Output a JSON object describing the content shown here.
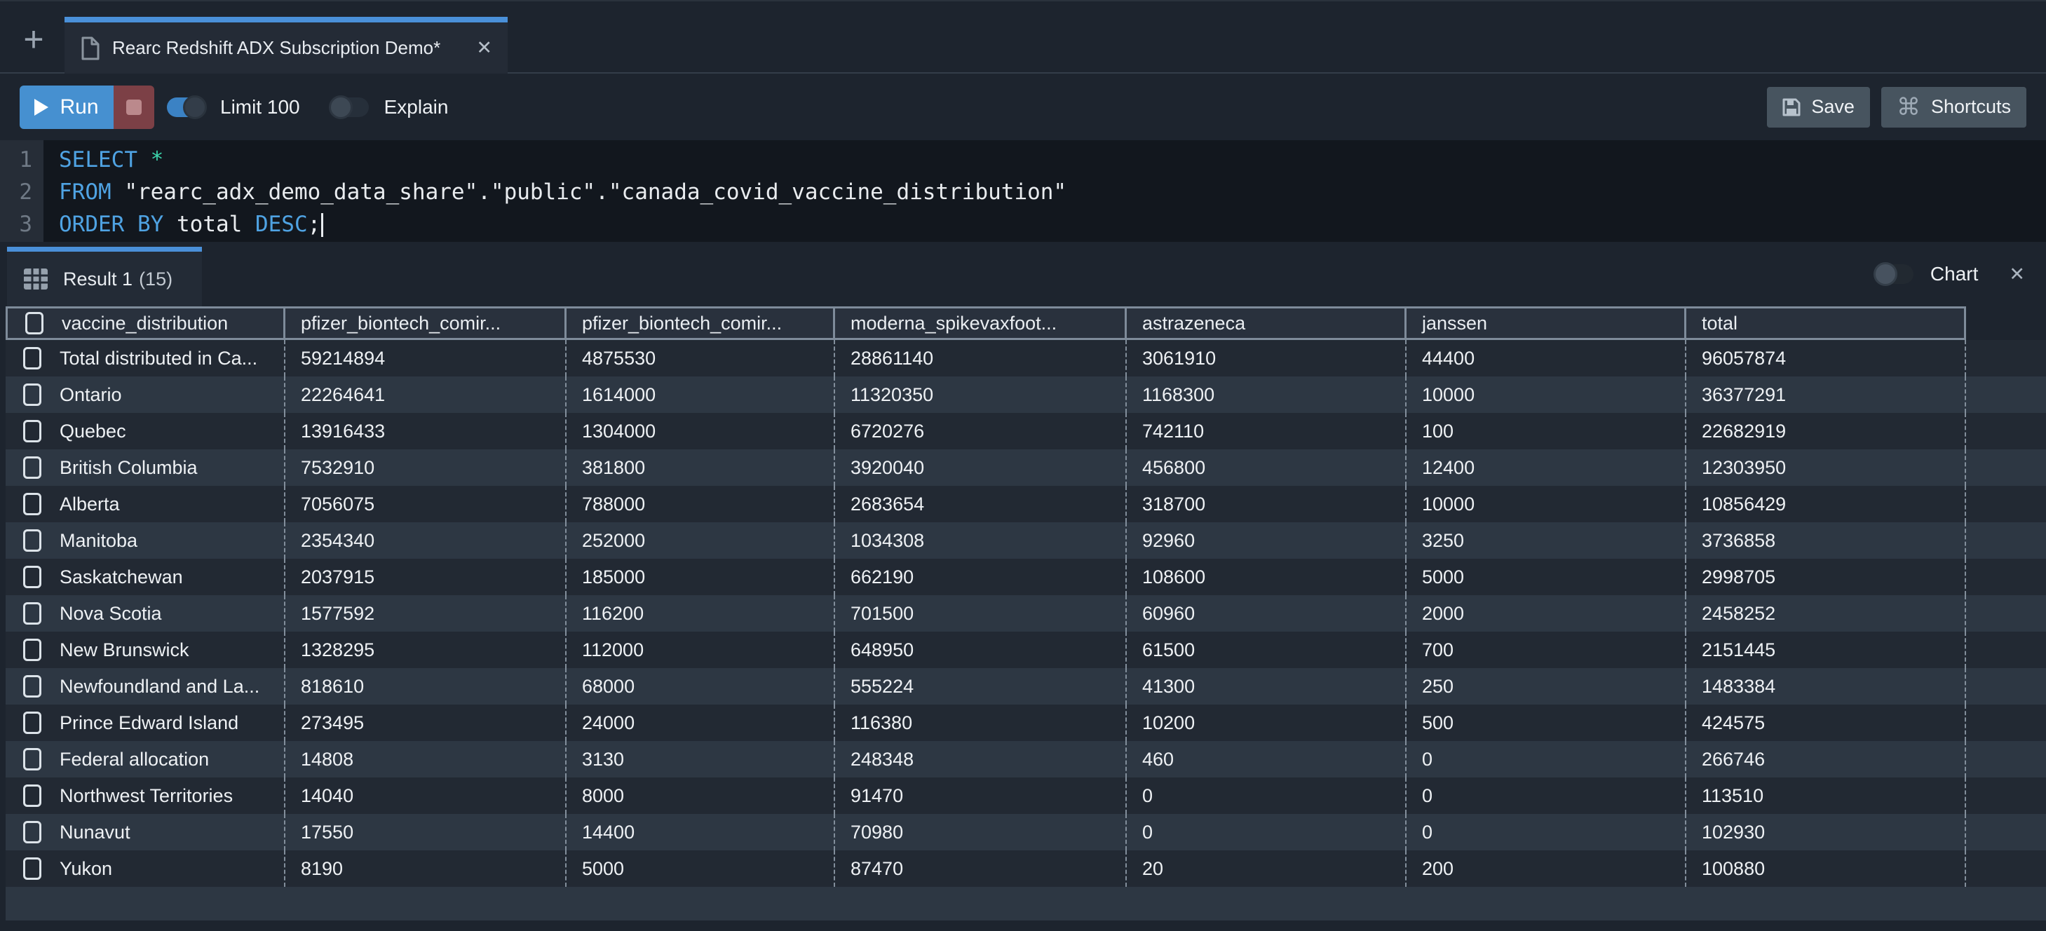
{
  "tab_bar": {
    "new_tab_icon": "+",
    "tab": {
      "title": "Rearc Redshift ADX Subscription Demo*",
      "close_icon": "✕"
    }
  },
  "toolbar": {
    "run_label": "Run",
    "limit_toggle_label": "Limit 100",
    "limit_toggle_state": "on",
    "explain_toggle_label": "Explain",
    "explain_toggle_state": "off",
    "save_label": "Save",
    "shortcuts_label": "Shortcuts",
    "shortcuts_icon": "⌘"
  },
  "editor": {
    "lines": [
      {
        "number": "1",
        "tokens": [
          [
            "kw",
            "SELECT"
          ],
          [
            "plain",
            " "
          ],
          [
            "op",
            "*"
          ]
        ]
      },
      {
        "number": "2",
        "tokens": [
          [
            "kw",
            "FROM"
          ],
          [
            "plain",
            " \"rearc_adx_demo_data_share\".\"public\".\"canada_covid_vaccine_distribution\""
          ]
        ]
      },
      {
        "number": "3",
        "cursor": true,
        "tokens": [
          [
            "kw",
            "ORDER"
          ],
          [
            "plain",
            " "
          ],
          [
            "kw",
            "BY"
          ],
          [
            "plain",
            " total "
          ],
          [
            "kw",
            "DESC"
          ],
          [
            "plain",
            ";"
          ]
        ]
      }
    ]
  },
  "results": {
    "tab_label": "Result 1",
    "tab_count": "(15)",
    "chart_toggle_label": "Chart",
    "chart_toggle_state": "off",
    "close_icon": "✕"
  },
  "table": {
    "columns": [
      "vaccine_distribution",
      "pfizer_biontech_comir...",
      "pfizer_biontech_comir...",
      "moderna_spikevaxfoot...",
      "astrazeneca",
      "janssen",
      "total"
    ],
    "rows": [
      [
        "Total distributed in Ca...",
        "59214894",
        "4875530",
        "28861140",
        "3061910",
        "44400",
        "96057874"
      ],
      [
        "Ontario",
        "22264641",
        "1614000",
        "11320350",
        "1168300",
        "10000",
        "36377291"
      ],
      [
        "Quebec",
        "13916433",
        "1304000",
        "6720276",
        "742110",
        "100",
        "22682919"
      ],
      [
        "British Columbia",
        "7532910",
        "381800",
        "3920040",
        "456800",
        "12400",
        "12303950"
      ],
      [
        "Alberta",
        "7056075",
        "788000",
        "2683654",
        "318700",
        "10000",
        "10856429"
      ],
      [
        "Manitoba",
        "2354340",
        "252000",
        "1034308",
        "92960",
        "3250",
        "3736858"
      ],
      [
        "Saskatchewan",
        "2037915",
        "185000",
        "662190",
        "108600",
        "5000",
        "2998705"
      ],
      [
        "Nova Scotia",
        "1577592",
        "116200",
        "701500",
        "60960",
        "2000",
        "2458252"
      ],
      [
        "New Brunswick",
        "1328295",
        "112000",
        "648950",
        "61500",
        "700",
        "2151445"
      ],
      [
        "Newfoundland and La...",
        "818610",
        "68000",
        "555224",
        "41300",
        "250",
        "1483384"
      ],
      [
        "Prince Edward Island",
        "273495",
        "24000",
        "116380",
        "10200",
        "500",
        "424575"
      ],
      [
        "Federal allocation",
        "14808",
        "3130",
        "248348",
        "460",
        "0",
        "266746"
      ],
      [
        "Northwest Territories",
        "14040",
        "8000",
        "91470",
        "0",
        "0",
        "113510"
      ],
      [
        "Nunavut",
        "17550",
        "14400",
        "70980",
        "0",
        "0",
        "102930"
      ],
      [
        "Yukon",
        "8190",
        "5000",
        "87470",
        "20",
        "200",
        "100880"
      ]
    ]
  },
  "colors": {
    "accent_blue": "#4a90d9",
    "run_button_blue": "#4690d0",
    "stop_button_red": "#7c4046",
    "keyword_blue": "#4fa3e3",
    "operator_teal": "#3bd4ab",
    "row_odd": "#222933",
    "row_even": "#2d3743",
    "header_bg": "#29313d"
  }
}
